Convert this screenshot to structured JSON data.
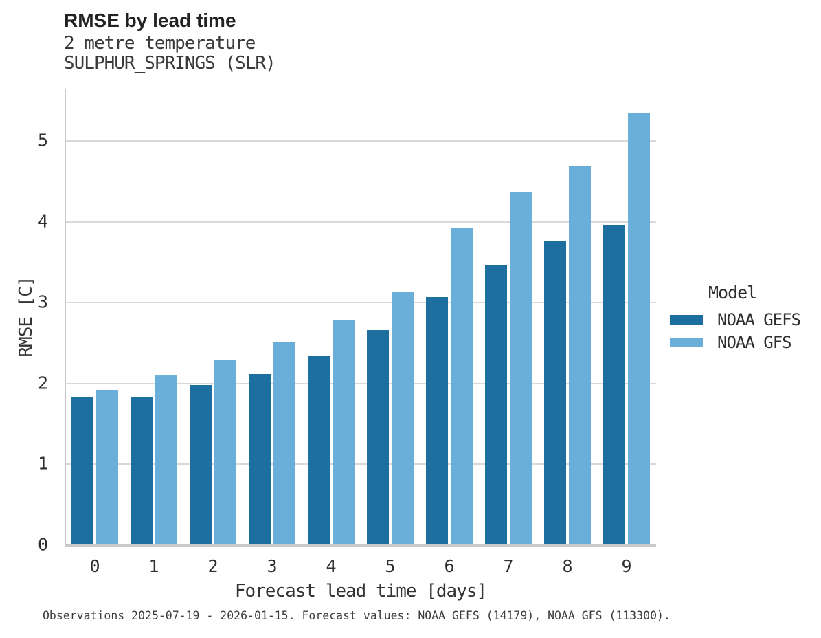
{
  "header": {
    "title": "RMSE by lead time",
    "subtitle1": "2 metre temperature",
    "subtitle2": "SULPHUR_SPRINGS (SLR)"
  },
  "chart_data": {
    "type": "bar",
    "title": "RMSE by lead time",
    "subtitle": [
      "2 metre temperature",
      "SULPHUR_SPRINGS (SLR)"
    ],
    "categories": [
      "0",
      "1",
      "2",
      "3",
      "4",
      "5",
      "6",
      "7",
      "8",
      "9"
    ],
    "series": [
      {
        "name": "NOAA GEFS",
        "color": "#1c6f9e",
        "values": [
          1.83,
          1.83,
          1.98,
          2.12,
          2.34,
          2.66,
          3.07,
          3.46,
          3.76,
          3.96
        ]
      },
      {
        "name": "NOAA GFS",
        "color": "#69afd9",
        "values": [
          1.92,
          2.11,
          2.3,
          2.51,
          2.78,
          3.13,
          3.93,
          4.36,
          4.69,
          5.35
        ]
      }
    ],
    "xlabel": "Forecast lead time [days]",
    "ylabel": "RMSE [C]",
    "ylim": [
      0,
      5.64
    ],
    "yticks": [
      0,
      1,
      2,
      3,
      4,
      5
    ],
    "grid": true,
    "legend_title": "Model",
    "legend_position": "right"
  },
  "caption": {
    "text": "Observations 2025-07-19 - 2026-01-15. Forecast values: NOAA GEFS (14179), NOAA GFS (113300)."
  }
}
